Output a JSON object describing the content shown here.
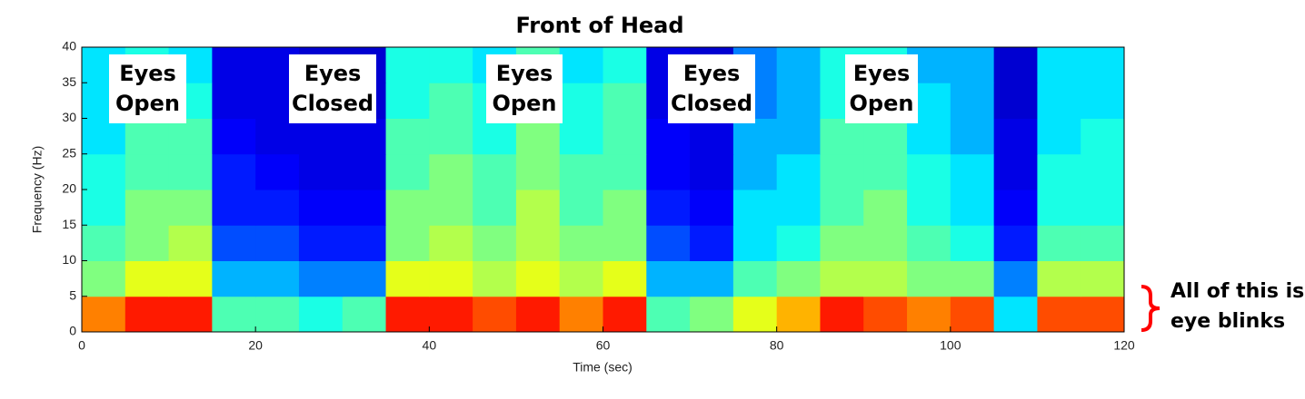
{
  "chart_data": {
    "type": "heatmap",
    "title": "Front of Head",
    "xlabel": "Time (sec)",
    "ylabel": "Frequency (Hz)",
    "colormap": "jet",
    "xlim": [
      0,
      120
    ],
    "ylim": [
      0,
      40
    ],
    "xticks": [
      0,
      20,
      40,
      60,
      80,
      100,
      120
    ],
    "yticks": [
      0,
      5,
      10,
      15,
      20,
      25,
      30,
      35,
      40
    ],
    "xbins": [
      0,
      5,
      10,
      15,
      20,
      25,
      30,
      35,
      40,
      45,
      50,
      55,
      60,
      65,
      70,
      75,
      80,
      85,
      90,
      95,
      100,
      105,
      110,
      115,
      120
    ],
    "ybins": [
      0,
      5,
      10,
      15,
      20,
      25,
      30,
      35,
      40
    ],
    "z": [
      [
        0.75,
        0.85,
        0.85,
        0.45,
        0.45,
        0.4,
        0.45,
        0.85,
        0.85,
        0.8,
        0.85,
        0.75,
        0.85,
        0.45,
        0.5,
        0.6,
        0.7,
        0.85,
        0.8,
        0.75,
        0.8,
        0.35,
        0.8,
        0.8
      ],
      [
        0.5,
        0.6,
        0.6,
        0.3,
        0.3,
        0.25,
        0.25,
        0.6,
        0.6,
        0.55,
        0.6,
        0.55,
        0.6,
        0.3,
        0.3,
        0.45,
        0.5,
        0.55,
        0.55,
        0.5,
        0.5,
        0.25,
        0.55,
        0.55
      ],
      [
        0.45,
        0.5,
        0.55,
        0.2,
        0.2,
        0.15,
        0.15,
        0.5,
        0.55,
        0.5,
        0.55,
        0.5,
        0.5,
        0.2,
        0.15,
        0.35,
        0.4,
        0.5,
        0.5,
        0.45,
        0.4,
        0.15,
        0.45,
        0.45
      ],
      [
        0.4,
        0.5,
        0.5,
        0.15,
        0.15,
        0.12,
        0.12,
        0.5,
        0.5,
        0.45,
        0.55,
        0.45,
        0.5,
        0.15,
        0.12,
        0.35,
        0.35,
        0.45,
        0.5,
        0.4,
        0.35,
        0.12,
        0.4,
        0.4
      ],
      [
        0.4,
        0.45,
        0.45,
        0.15,
        0.12,
        0.1,
        0.1,
        0.45,
        0.5,
        0.45,
        0.5,
        0.45,
        0.45,
        0.12,
        0.1,
        0.3,
        0.35,
        0.45,
        0.45,
        0.4,
        0.35,
        0.1,
        0.4,
        0.4
      ],
      [
        0.35,
        0.45,
        0.45,
        0.12,
        0.1,
        0.1,
        0.1,
        0.45,
        0.45,
        0.4,
        0.5,
        0.4,
        0.45,
        0.12,
        0.1,
        0.3,
        0.3,
        0.45,
        0.45,
        0.35,
        0.3,
        0.1,
        0.35,
        0.4
      ],
      [
        0.35,
        0.4,
        0.4,
        0.1,
        0.1,
        0.08,
        0.08,
        0.4,
        0.45,
        0.4,
        0.45,
        0.4,
        0.45,
        0.1,
        0.08,
        0.25,
        0.3,
        0.4,
        0.4,
        0.35,
        0.3,
        0.08,
        0.35,
        0.35
      ],
      [
        0.35,
        0.4,
        0.35,
        0.1,
        0.1,
        0.08,
        0.08,
        0.4,
        0.4,
        0.35,
        0.45,
        0.35,
        0.4,
        0.1,
        0.08,
        0.25,
        0.3,
        0.4,
        0.4,
        0.3,
        0.3,
        0.08,
        0.35,
        0.35
      ]
    ],
    "annotations": [
      [
        "Eyes",
        "Open"
      ],
      [
        "Eyes",
        "Closed"
      ],
      [
        "Eyes",
        "Open"
      ],
      [
        "Eyes",
        "Closed"
      ],
      [
        "Eyes",
        "Open"
      ]
    ],
    "side_note": [
      "All of this is",
      "eye blinks"
    ],
    "side_note_color": "#ff0000"
  }
}
